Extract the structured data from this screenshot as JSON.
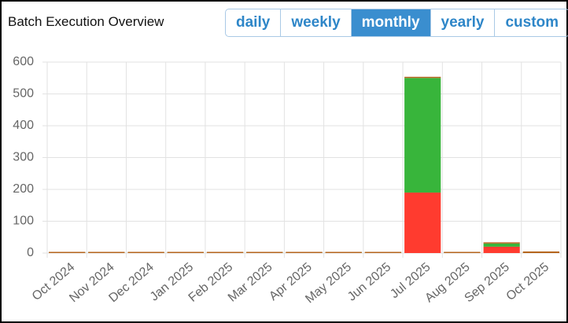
{
  "header": {
    "title": "Batch Execution Overview",
    "buttons": [
      "daily",
      "weekly",
      "monthly",
      "yearly",
      "custom"
    ]
  },
  "chart_data": {
    "type": "stacked_bar",
    "categories": [
      "Oct 2024",
      "Nov 2024",
      "Dec 2024",
      "Jan 2025",
      "Feb 2025",
      "Mar 2025",
      "Apr 2025",
      "May 2025",
      "Jun 2025",
      "Jul 2025",
      "Aug 2025",
      "Sep 2025",
      "Oct 2025"
    ],
    "series": [
      {
        "color": "#ff3b2f",
        "values": [
          0,
          0,
          0,
          0,
          0,
          0,
          0,
          0,
          0,
          190,
          0,
          20,
          0
        ]
      },
      {
        "color": "#38b53b",
        "values": [
          0,
          0,
          0,
          0,
          0,
          0,
          0,
          0,
          0,
          360,
          0,
          10,
          0
        ]
      },
      {
        "color": "#b5651d",
        "values": [
          0,
          0,
          0,
          0,
          0,
          0,
          0,
          0,
          0,
          0,
          0,
          0,
          5
        ]
      }
    ],
    "ylim": [
      0,
      600
    ],
    "yticks": [
      0,
      100,
      200,
      300,
      400,
      500,
      600
    ],
    "grid": true
  }
}
